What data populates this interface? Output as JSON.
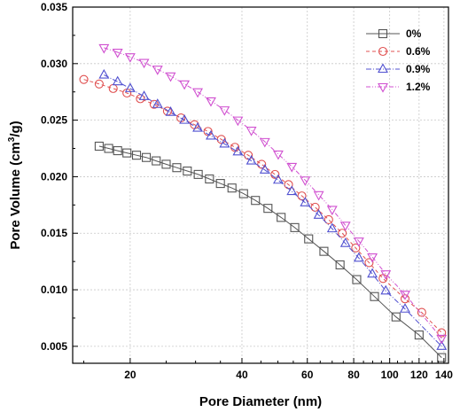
{
  "chart_data": {
    "type": "line",
    "title": "",
    "xlabel": "Pore Diameter (nm)",
    "ylabel_parts": [
      "Pore Volume (cm",
      "3",
      "/g)"
    ],
    "x_scale": "log",
    "xlim": [
      14,
      144
    ],
    "ylim": [
      0.0035,
      0.035
    ],
    "x_ticks": [
      20,
      40,
      60,
      80,
      100,
      120,
      140
    ],
    "x_tick_labels": [
      "20",
      "40",
      "60",
      "80",
      "100",
      "120",
      "140"
    ],
    "y_ticks": [
      0.005,
      0.01,
      0.015,
      0.02,
      0.025,
      0.03,
      0.035
    ],
    "y_tick_labels": [
      "0.005",
      "0.010",
      "0.015",
      "0.020",
      "0.025",
      "0.030",
      "0.035"
    ],
    "grid": true,
    "legend_position": "top-right",
    "series": [
      {
        "name": "0%",
        "color": "#555555",
        "marker": "square",
        "dash": "solid",
        "points": [
          [
            16.5,
            0.0227
          ],
          [
            17.5,
            0.0225
          ],
          [
            18.5,
            0.0223
          ],
          [
            19.6,
            0.0221
          ],
          [
            20.8,
            0.0219
          ],
          [
            22.1,
            0.0217
          ],
          [
            23.5,
            0.0214
          ],
          [
            25.0,
            0.0211
          ],
          [
            26.7,
            0.0208
          ],
          [
            28.5,
            0.0205
          ],
          [
            30.5,
            0.0202
          ],
          [
            32.7,
            0.0198
          ],
          [
            35.0,
            0.0194
          ],
          [
            37.6,
            0.019
          ],
          [
            40.4,
            0.0185
          ],
          [
            43.5,
            0.0179
          ],
          [
            47.0,
            0.0172
          ],
          [
            51.0,
            0.0164
          ],
          [
            55.5,
            0.0155
          ],
          [
            60.5,
            0.0145
          ],
          [
            66.5,
            0.0134
          ],
          [
            73.5,
            0.0122
          ],
          [
            81.5,
            0.0109
          ],
          [
            91.0,
            0.0094
          ],
          [
            104.0,
            0.0076
          ],
          [
            120.0,
            0.006
          ],
          [
            138.0,
            0.004
          ]
        ]
      },
      {
        "name": "0.6%",
        "color": "#e05050",
        "marker": "circle",
        "dash": "dash",
        "points": [
          [
            15.0,
            0.0286
          ],
          [
            16.5,
            0.0282
          ],
          [
            18.0,
            0.0278
          ],
          [
            19.6,
            0.0274
          ],
          [
            21.3,
            0.0269
          ],
          [
            23.2,
            0.0264
          ],
          [
            25.2,
            0.0258
          ],
          [
            27.4,
            0.0252
          ],
          [
            29.8,
            0.0246
          ],
          [
            32.4,
            0.024
          ],
          [
            35.2,
            0.0233
          ],
          [
            38.3,
            0.0226
          ],
          [
            41.6,
            0.0219
          ],
          [
            45.2,
            0.0211
          ],
          [
            49.1,
            0.0202
          ],
          [
            53.4,
            0.0193
          ],
          [
            58.0,
            0.0183
          ],
          [
            63.0,
            0.0173
          ],
          [
            68.5,
            0.0162
          ],
          [
            74.5,
            0.015
          ],
          [
            81.0,
            0.0137
          ],
          [
            88.0,
            0.0124
          ],
          [
            96.0,
            0.011
          ],
          [
            110.0,
            0.0092
          ],
          [
            122.0,
            0.008
          ],
          [
            138.0,
            0.0062
          ]
        ]
      },
      {
        "name": "0.9%",
        "color": "#5050d0",
        "marker": "triangle-up",
        "dash": "dashdot",
        "points": [
          [
            17.0,
            0.029
          ],
          [
            18.5,
            0.0284
          ],
          [
            20.0,
            0.0278
          ],
          [
            21.8,
            0.0271
          ],
          [
            23.7,
            0.0264
          ],
          [
            25.7,
            0.0257
          ],
          [
            28.0,
            0.025
          ],
          [
            30.4,
            0.0243
          ],
          [
            33.0,
            0.0236
          ],
          [
            35.9,
            0.0229
          ],
          [
            39.0,
            0.0222
          ],
          [
            42.4,
            0.0214
          ],
          [
            46.1,
            0.0206
          ],
          [
            50.1,
            0.0197
          ],
          [
            54.5,
            0.0187
          ],
          [
            59.2,
            0.0177
          ],
          [
            64.4,
            0.0166
          ],
          [
            70.0,
            0.0154
          ],
          [
            76.0,
            0.0141
          ],
          [
            82.6,
            0.0128
          ],
          [
            89.8,
            0.0114
          ],
          [
            97.6,
            0.0099
          ],
          [
            110.0,
            0.0083
          ],
          [
            138.0,
            0.005
          ]
        ]
      },
      {
        "name": "1.2%",
        "color": "#d050d0",
        "marker": "triangle-down",
        "dash": "dashdotdot",
        "points": [
          [
            17.0,
            0.0314
          ],
          [
            18.5,
            0.031
          ],
          [
            20.0,
            0.0306
          ],
          [
            21.8,
            0.0301
          ],
          [
            23.7,
            0.0295
          ],
          [
            25.7,
            0.0289
          ],
          [
            28.0,
            0.0282
          ],
          [
            30.4,
            0.0275
          ],
          [
            33.0,
            0.0267
          ],
          [
            35.9,
            0.0259
          ],
          [
            39.0,
            0.025
          ],
          [
            42.4,
            0.0241
          ],
          [
            46.1,
            0.0231
          ],
          [
            50.1,
            0.022
          ],
          [
            54.5,
            0.0209
          ],
          [
            59.2,
            0.0197
          ],
          [
            64.4,
            0.0184
          ],
          [
            70.0,
            0.0171
          ],
          [
            76.0,
            0.0157
          ],
          [
            82.6,
            0.0143
          ],
          [
            89.8,
            0.0129
          ],
          [
            97.6,
            0.0114
          ],
          [
            110.0,
            0.0096
          ],
          [
            138.0,
            0.0057
          ]
        ]
      }
    ]
  }
}
